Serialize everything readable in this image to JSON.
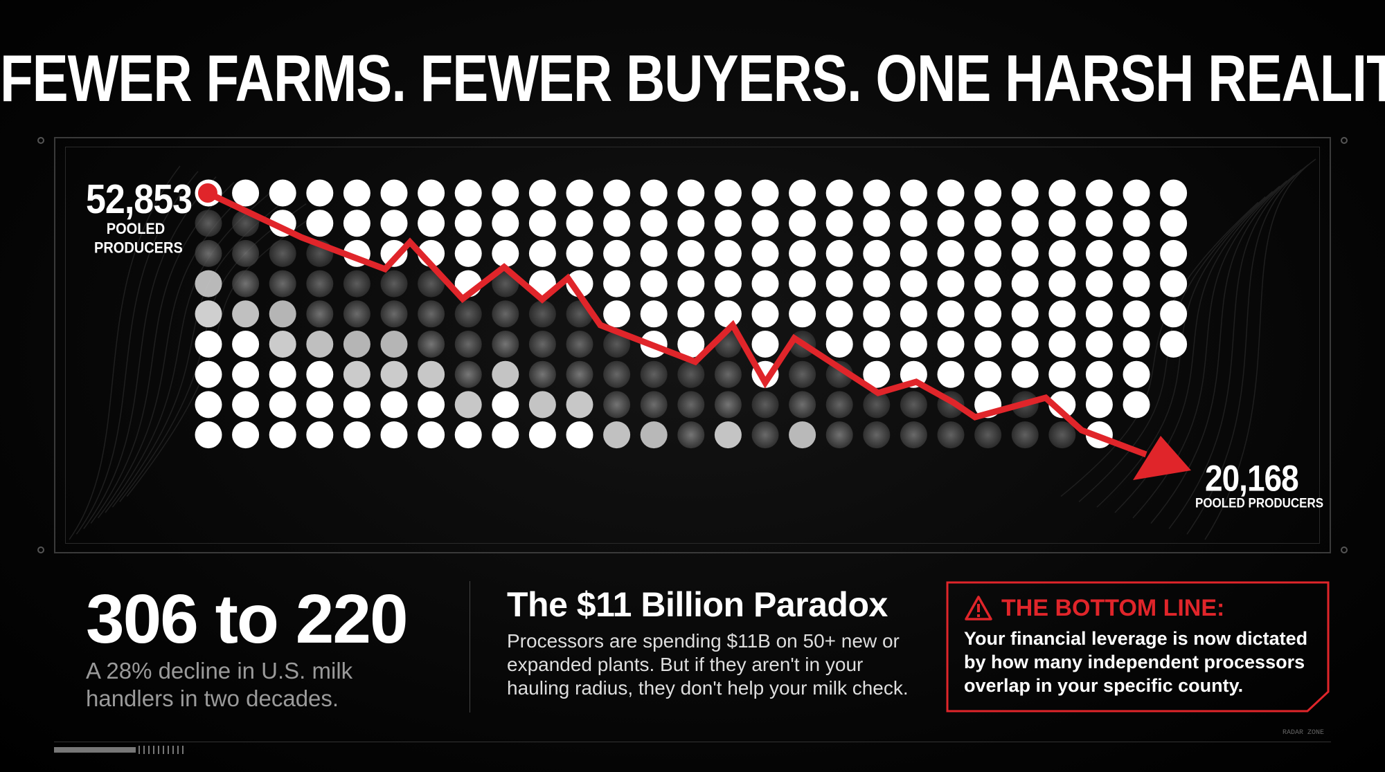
{
  "title": "FEWER FARMS. FEWER BUYERS. ONE HARSH REALITY.",
  "chart": {
    "start_value": "52,853",
    "start_label": "POOLED PRODUCERS",
    "end_value": "20,168",
    "end_label": "POOLED PRODUCERS",
    "accent_color": "#e0252a"
  },
  "stat": {
    "headline": "306 to 220",
    "description": "A 28% decline in U.S. milk handlers in two decades."
  },
  "paradox": {
    "heading": "The $11 Billion Paradox",
    "body": "Processors are spending $11B on 50+ new or expanded plants. But if they aren't in your hauling radius, they don't help your milk check."
  },
  "bottom_line": {
    "title": "THE BOTTOM LINE:",
    "icon": "warning-icon",
    "body": "Your financial leverage is now dictated by how many independent processors overlap in your specific county."
  },
  "footer": {
    "tag": "RADAR ZONE"
  }
}
